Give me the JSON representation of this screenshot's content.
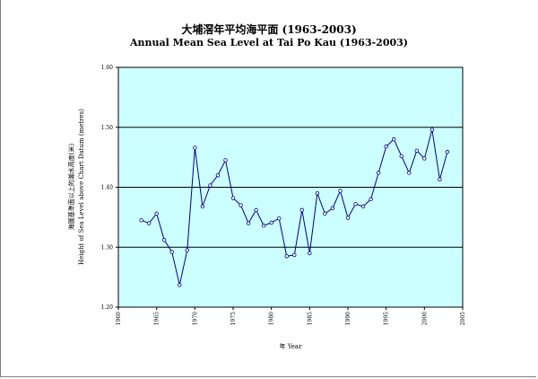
{
  "chart_data": {
    "type": "line",
    "title": "大埔滘年平均海平面 (1963-2003)",
    "subtitle": "Annual Mean Sea Level at Tai Po Kau (1963-2003)",
    "xlabel": "年 Year",
    "ylabel_zh": "海圖基準面以上的潮水高度(米)",
    "ylabel_en": "Height of Sea Level above Chart Datum (metres)",
    "xlim": [
      1960,
      2005
    ],
    "ylim": [
      1.2,
      1.6
    ],
    "xticks": [
      "1960",
      "1965",
      "1970",
      "1975",
      "1980",
      "1985",
      "1990",
      "1995",
      "2000",
      "2005"
    ],
    "yticks": [
      "1.20",
      "1.30",
      "1.40",
      "1.50",
      "1.60"
    ],
    "grid": "horizontal",
    "plot_background": "#ccffff",
    "line_color": "#000080",
    "x": [
      1963,
      1964,
      1965,
      1966,
      1967,
      1968,
      1969,
      1970,
      1971,
      1972,
      1973,
      1974,
      1975,
      1976,
      1977,
      1978,
      1979,
      1980,
      1981,
      1982,
      1983,
      1984,
      1985,
      1986,
      1987,
      1988,
      1989,
      1990,
      1991,
      1992,
      1993,
      1994,
      1995,
      1996,
      1997,
      1998,
      1999,
      2000,
      2001,
      2002,
      2003
    ],
    "values": [
      1.345,
      1.34,
      1.356,
      1.312,
      1.292,
      1.237,
      1.295,
      1.466,
      1.368,
      1.403,
      1.42,
      1.445,
      1.382,
      1.37,
      1.34,
      1.362,
      1.336,
      1.341,
      1.348,
      1.285,
      1.287,
      1.362,
      1.29,
      1.39,
      1.356,
      1.365,
      1.394,
      1.349,
      1.372,
      1.368,
      1.38,
      1.424,
      1.468,
      1.48,
      1.452,
      1.424,
      1.461,
      1.448,
      1.496,
      1.413,
      1.459
    ]
  }
}
